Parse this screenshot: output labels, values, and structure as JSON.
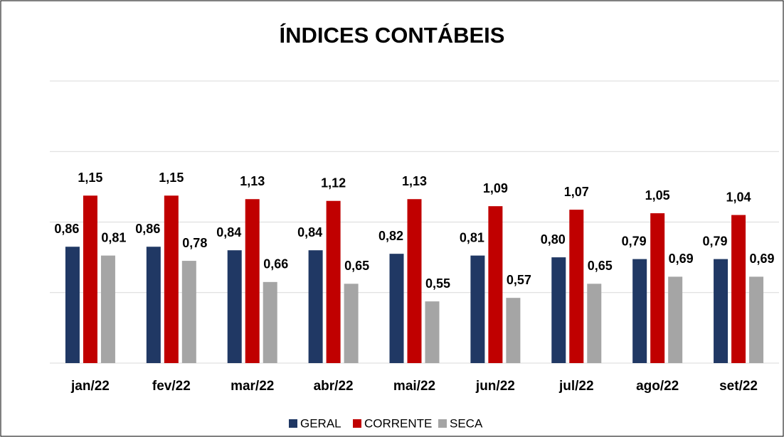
{
  "chart_data": {
    "type": "bar",
    "title": "ÍNDICES CONTÁBEIS",
    "categories": [
      "jan/22",
      "fev/22",
      "mar/22",
      "abr/22",
      "mai/22",
      "jun/22",
      "jul/22",
      "ago/22",
      "set/22"
    ],
    "series": [
      {
        "name": "GERAL",
        "color": "#203864",
        "values": [
          0.86,
          0.86,
          0.84,
          0.84,
          0.82,
          0.81,
          0.8,
          0.79,
          0.79
        ],
        "value_labels": [
          "0,86",
          "0,86",
          "0,84",
          "0,84",
          "0,82",
          "0,81",
          "0,80",
          "0,79",
          "0,79"
        ]
      },
      {
        "name": "CORRENTE",
        "color": "#c00000",
        "values": [
          1.15,
          1.15,
          1.13,
          1.12,
          1.13,
          1.09,
          1.07,
          1.05,
          1.04
        ],
        "value_labels": [
          "1,15",
          "1,15",
          "1,13",
          "1,12",
          "1,13",
          "1,09",
          "1,07",
          "1,05",
          "1,04"
        ]
      },
      {
        "name": "SECA",
        "color": "#a5a5a5",
        "values": [
          0.81,
          0.78,
          0.66,
          0.65,
          0.55,
          0.57,
          0.65,
          0.69,
          0.69
        ],
        "value_labels": [
          "0,81",
          "0,78",
          "0,66",
          "0,65",
          "0,55",
          "0,57",
          "0,65",
          "0,69",
          "0,69"
        ]
      }
    ],
    "ylim": [
      0.2,
      1.8
    ],
    "yticks": [
      0.2,
      0.6,
      1.0,
      1.4,
      1.8
    ],
    "grid": true,
    "legend": "bottom"
  }
}
